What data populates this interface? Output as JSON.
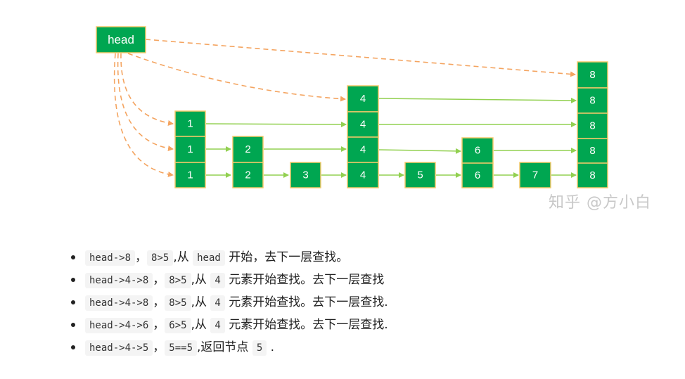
{
  "diagram": {
    "head_label": "head",
    "levels": [
      [
        "1",
        "2",
        "3",
        "4",
        "5",
        "6",
        "7",
        "8"
      ],
      [
        "1",
        "2",
        "4",
        "6",
        "8"
      ],
      [
        "1",
        "4",
        "8"
      ],
      [
        "4",
        "8"
      ],
      [
        "8"
      ]
    ],
    "colors": {
      "node_fill": "#00a651",
      "node_border": "#f5c96a",
      "solid_arrow": "#92d050",
      "dashed_arrow": "#f4a460"
    }
  },
  "watermark": "知乎 @方小白",
  "steps": [
    {
      "code1": "head->8",
      "sep": "，",
      "code2": "8>5",
      "text1": ",从",
      "code3": "head",
      "text2": "开始，去下一层查找。"
    },
    {
      "code1": "head->4->8",
      "sep": "，",
      "code2": "8>5",
      "text1": ",从",
      "code3": "4",
      "text2": "元素开始查找。去下一层查找"
    },
    {
      "code1": "head->4->8",
      "sep": "，",
      "code2": "8>5",
      "text1": ",从",
      "code3": "4",
      "text2": "元素开始查找。去下一层查找."
    },
    {
      "code1": "head->4->6",
      "sep": "，",
      "code2": "6>5",
      "text1": ",从",
      "code3": "4",
      "text2": "元素开始查找。去下一层查找."
    },
    {
      "code1": "head->4->5",
      "sep": "，",
      "code2": "5==5",
      "text1": ",返回节点",
      "code3": "5",
      "text2": "."
    }
  ]
}
